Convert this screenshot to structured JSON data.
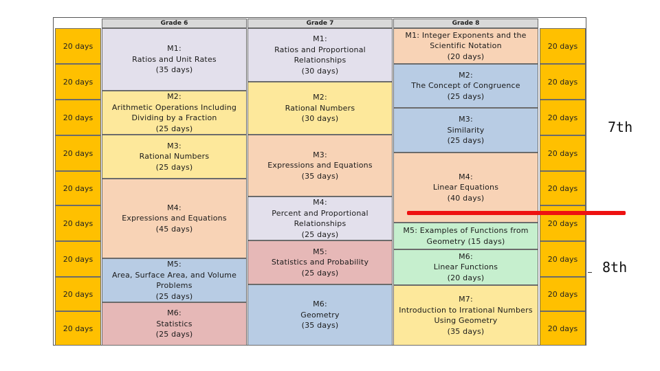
{
  "headers": {
    "grade6": "Grade 6",
    "grade7": "Grade 7",
    "grade8": "Grade 8"
  },
  "days_label": "20 days",
  "grade6": [
    {
      "lines": [
        "M1:",
        "Ratios and Unit Rates",
        "(35 days)"
      ]
    },
    {
      "lines": [
        "M2:",
        "Arithmetic Operations Including",
        "Dividing by a Fraction",
        "(25 days)"
      ]
    },
    {
      "lines": [
        "M3:",
        "Rational Numbers",
        "(25 days)"
      ]
    },
    {
      "lines": [
        "M4:",
        "Expressions and Equations",
        "(45 days)"
      ]
    },
    {
      "lines": [
        "M5:",
        "Area, Surface Area, and Volume",
        "Problems",
        "(25 days)"
      ]
    },
    {
      "lines": [
        "M6:",
        "Statistics",
        "(25 days)"
      ]
    }
  ],
  "grade7": [
    {
      "lines": [
        "M1:",
        "Ratios and Proportional",
        "Relationships",
        "(30 days)"
      ]
    },
    {
      "lines": [
        "M2:",
        "Rational Numbers",
        "(30 days)"
      ]
    },
    {
      "lines": [
        "M3:",
        "Expressions and Equations",
        "(35 days)"
      ]
    },
    {
      "lines": [
        "M4:",
        "Percent and Proportional",
        "Relationships",
        "(25 days)"
      ]
    },
    {
      "lines": [
        "M5:",
        "Statistics and Probability",
        "(25 days)"
      ]
    },
    {
      "lines": [
        "M6:",
        "Geometry",
        "(35 days)"
      ]
    }
  ],
  "grade8": [
    {
      "lines": [
        "M1: Integer Exponents and the",
        "Scientific Notation",
        "(20 days)"
      ]
    },
    {
      "lines": [
        "M2:",
        "The Concept of Congruence",
        "(25 days)"
      ]
    },
    {
      "lines": [
        "M3:",
        "Similarity",
        "(25 days)"
      ]
    },
    {
      "lines": [
        "M4:",
        "Linear Equations",
        "(40 days)"
      ]
    },
    {
      "lines": [
        "M5: Examples of Functions from",
        "Geometry (15 days)"
      ]
    },
    {
      "lines": [
        "M6:",
        "Linear Functions",
        "(20 days)"
      ]
    },
    {
      "lines": [
        "M7:",
        "Introduction to Irrational Numbers",
        "Using Geometry",
        "(35 days)"
      ]
    }
  ],
  "annotations": {
    "label_7th": "7th",
    "label_8th": "8th"
  },
  "colors": {
    "days": "#ffc000",
    "lavender": "#e3e0ec",
    "yellow": "#fde89b",
    "peach": "#f8d3b6",
    "blue": "#b8cce4",
    "pink": "#e6b8b7",
    "green": "#c6efce",
    "red_line": "#ee1111"
  }
}
